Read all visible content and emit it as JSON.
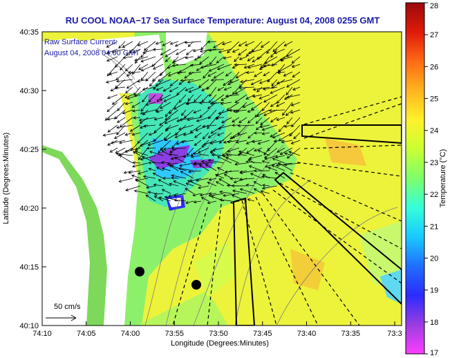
{
  "title": "RU COOL  NOAA−17  Sea Surface Temperature:  August 04, 2008 0255 GMT",
  "legend": {
    "line1": "Raw Surface Current:",
    "line2": "August 04, 2008 04:00 GMT",
    "scale_label": "50 cm/s"
  },
  "axes": {
    "xlabel": "Longitude (Degrees:Minutes)",
    "ylabel": "Latitude (Degrees:Minutes)",
    "xticks": [
      "74:10",
      "74:05",
      "74:00",
      "73:55",
      "73:50",
      "73:45",
      "73:40",
      "73:35",
      "73:3"
    ],
    "yticks": [
      "40:35",
      "40:30",
      "40:25",
      "40:20",
      "40:15",
      "40:10"
    ]
  },
  "colorbar": {
    "label": "Temperature (°C)",
    "ticks": [
      "28",
      "27",
      "26",
      "25",
      "24",
      "23",
      "22",
      "21",
      "20",
      "19",
      "18",
      "17"
    ],
    "range": [
      17,
      28
    ],
    "colors": [
      "#ff3dff",
      "#9a3de0",
      "#2b2bff",
      "#1f6fff",
      "#19c9ff",
      "#35ffd9",
      "#7fff6a",
      "#c9ff33",
      "#fff12a",
      "#ffb41f",
      "#ff6a14",
      "#e01a0a",
      "#9a0a0a"
    ]
  },
  "map_colors": {
    "water": "#f2f53a",
    "land": "#ffffff",
    "cloud": "#ffffff"
  }
}
